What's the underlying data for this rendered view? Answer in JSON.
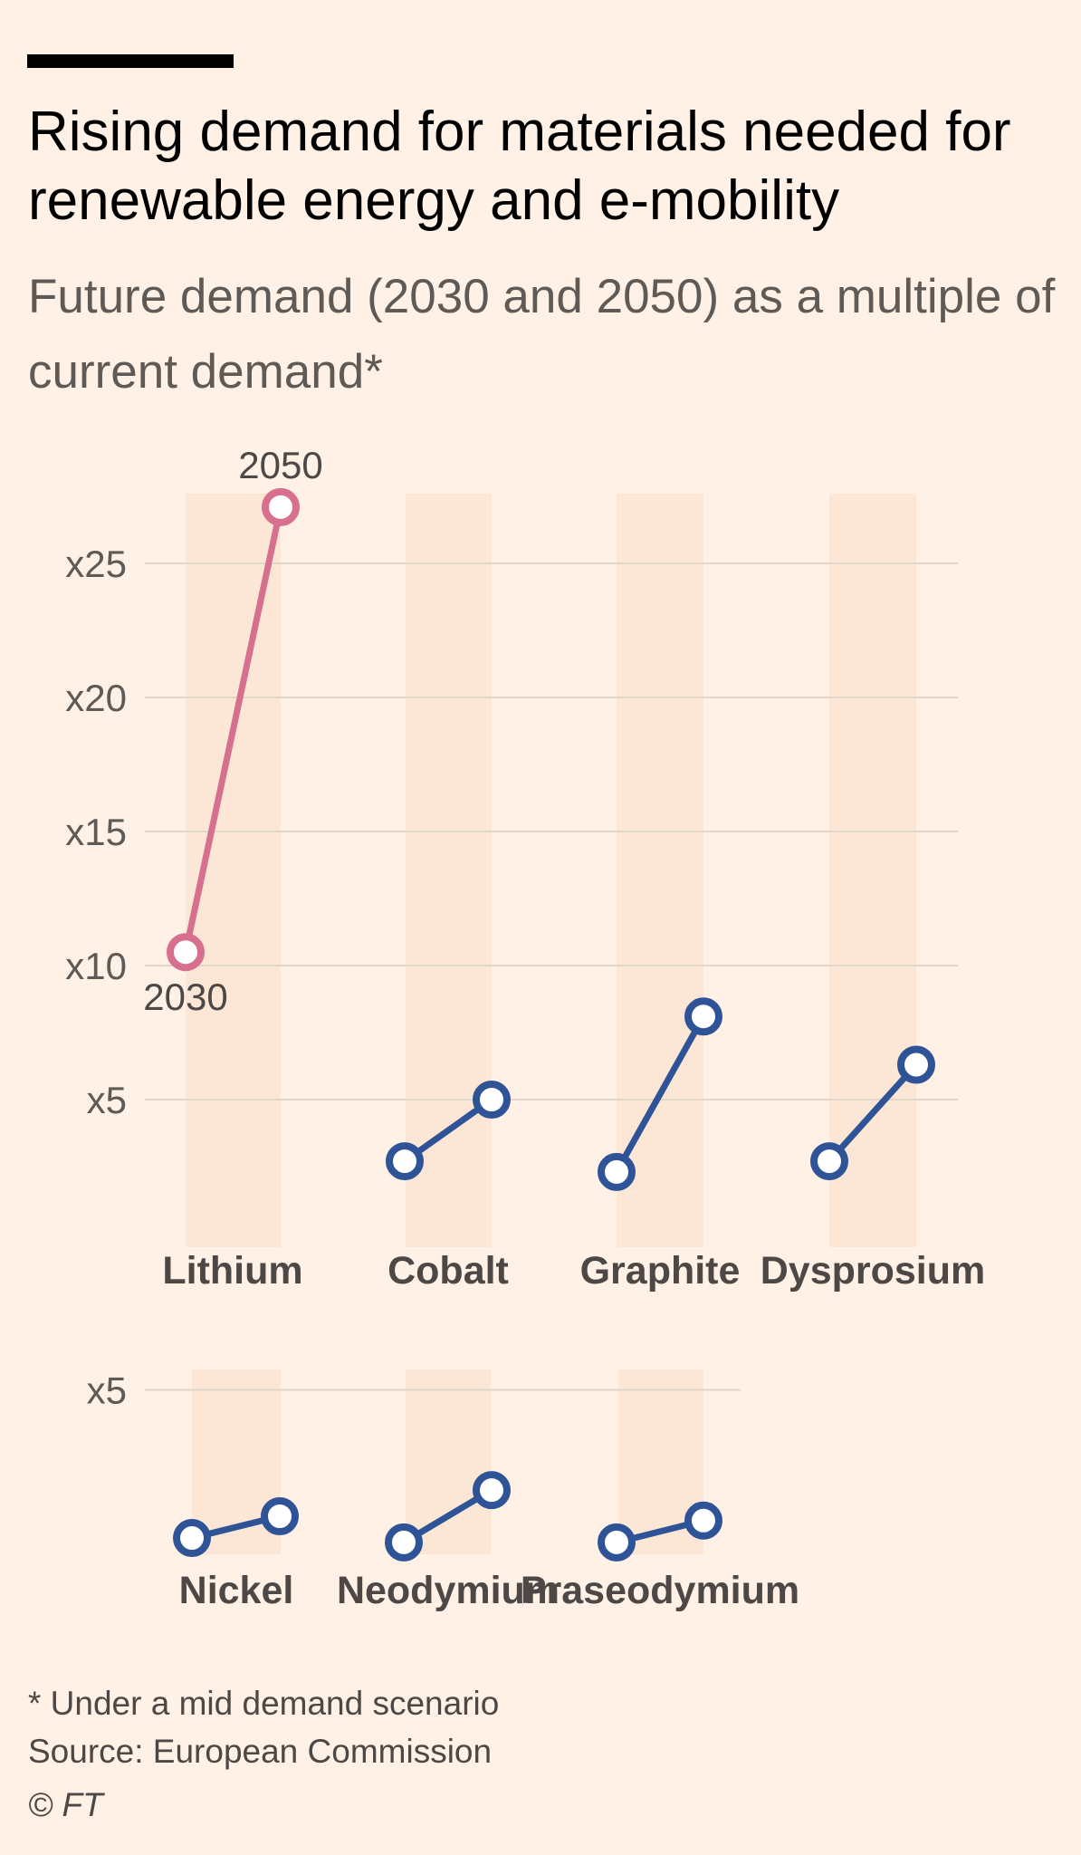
{
  "title": "Rising demand for materials needed for renewable energy and e-mobility",
  "subtitle": "Future demand (2030 and 2050) as a multiple of current demand*",
  "footnote": "* Under a mid demand scenario",
  "source": "Source: European Commission",
  "copyright": "© FT",
  "colors": {
    "highlight": "#D7708F",
    "series": "#2E5397",
    "band": "#FCE7D6",
    "grid": "#E2D6CB"
  },
  "chart_data": [
    {
      "type": "slope",
      "panel": "top",
      "ylim": [
        0,
        27.5
      ],
      "yticks": [
        5,
        10,
        15,
        20,
        25
      ],
      "ytick_labels": [
        "x5",
        "x10",
        "x15",
        "x20",
        "x25"
      ],
      "series_labels": [
        "2030",
        "2050"
      ],
      "items": [
        {
          "name": "Lithium",
          "v2030": 10.5,
          "v2050": 27.1,
          "highlight": true
        },
        {
          "name": "Cobalt",
          "v2030": 2.7,
          "v2050": 5.0
        },
        {
          "name": "Graphite",
          "v2030": 2.3,
          "v2050": 8.1
        },
        {
          "name": "Dysprosium",
          "v2030": 2.7,
          "v2050": 6.3
        }
      ],
      "annotations": [
        {
          "text": "2050",
          "item": "Lithium",
          "series": "v2050"
        },
        {
          "text": "2030",
          "item": "Lithium",
          "series": "v2030"
        }
      ]
    },
    {
      "type": "slope",
      "panel": "bottom",
      "ylim": [
        0,
        6.3
      ],
      "yticks": [
        5
      ],
      "ytick_labels": [
        "x5"
      ],
      "items": [
        {
          "name": "Nickel",
          "v2030": 1.6,
          "v2050": 2.1
        },
        {
          "name": "Neodymium",
          "v2030": 1.5,
          "v2050": 2.7
        },
        {
          "name": "Praseodymium",
          "v2030": 1.5,
          "v2050": 2.0
        }
      ]
    }
  ]
}
